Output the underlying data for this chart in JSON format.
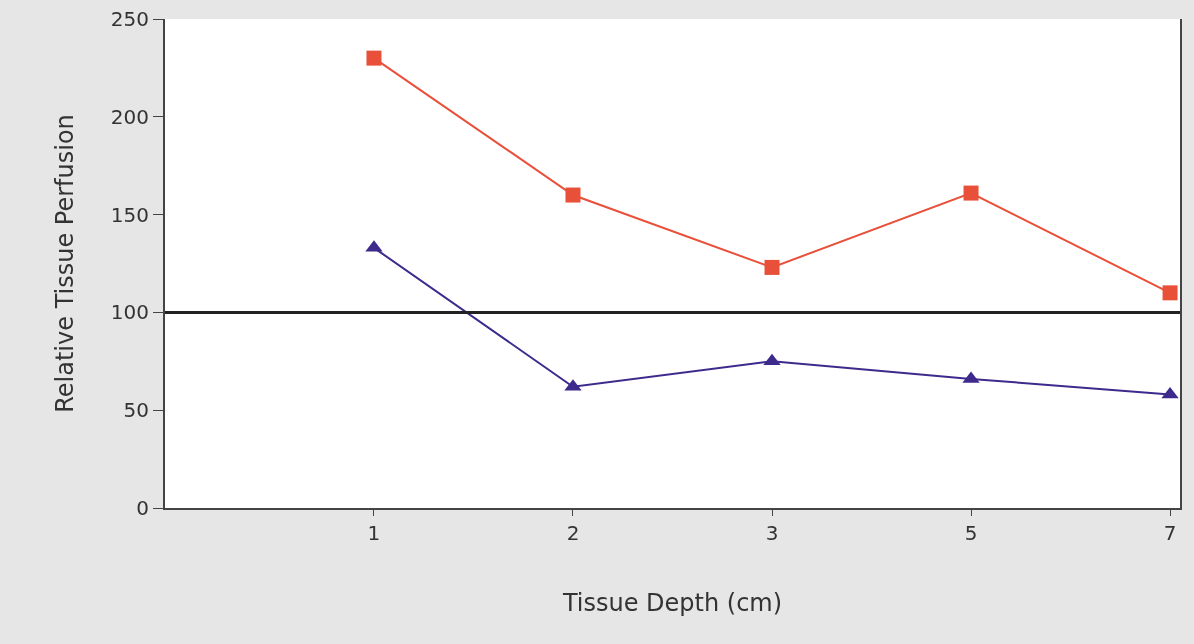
{
  "chart_data": {
    "type": "line",
    "xlabel": "Tissue Depth (cm)",
    "ylabel": "Relative Tissue Perfusion",
    "categories": [
      "1",
      "2",
      "3",
      "5",
      "7"
    ],
    "series": [
      {
        "color": "#e8503a",
        "marker": "square",
        "values": [
          230,
          160,
          123,
          161,
          110
        ]
      },
      {
        "color": "#3d2a8c",
        "marker": "triangle",
        "values": [
          133,
          62,
          75,
          66,
          58
        ]
      }
    ],
    "ylim": [
      0,
      250
    ],
    "yticks": [
      0,
      50,
      100,
      150,
      200,
      250
    ],
    "grid": false,
    "line_style": "solid",
    "ref_lines": [
      {
        "axis": "y",
        "value": 100,
        "color": "#222222"
      }
    ]
  }
}
